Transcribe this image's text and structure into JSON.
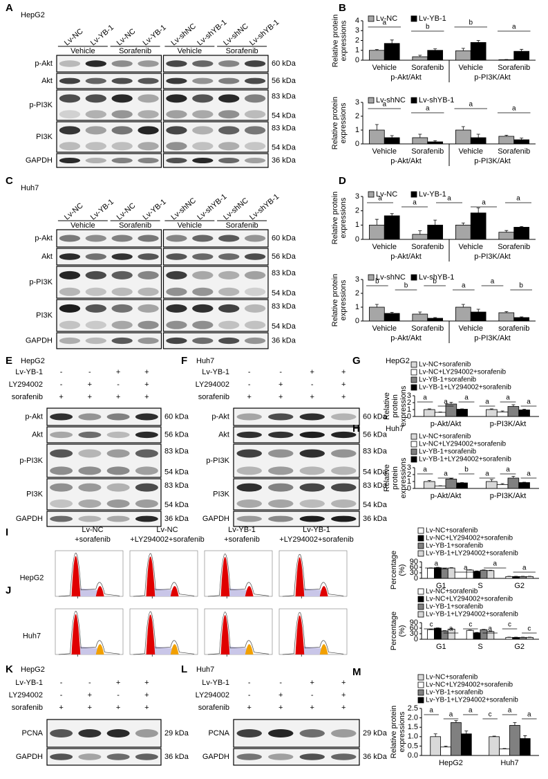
{
  "blots": [
    {
      "panel": "A",
      "cell": "HepG2",
      "lanes": [
        "Lv-NC",
        "Lv-YB-1",
        "Lv-NC",
        "Lv-YB-1",
        "Lv-shNC",
        "Lv-shYB-1",
        "Lv-shNC",
        "Lv-shYB-1"
      ],
      "groups": [
        "Vehicle",
        "Sorafenib",
        "Vehicle",
        "Sorafenib"
      ],
      "rows": [
        {
          "name": "p-Akt",
          "kda": [
            "60 kDa"
          ]
        },
        {
          "name": "Akt",
          "kda": [
            "56 kDa"
          ]
        },
        {
          "name": "p-PI3K",
          "kda": [
            "83 kDa",
            "54 kDa"
          ]
        },
        {
          "name": "PI3K",
          "kda": [
            "83 kDa",
            "54 kDa"
          ]
        },
        {
          "name": "GAPDH",
          "kda": [
            "36 kDa"
          ]
        }
      ]
    },
    {
      "panel": "C",
      "cell": "Huh7",
      "lanes": [
        "Lv-NC",
        "Lv-YB-1",
        "Lv-NC",
        "Lv-YB-1",
        "Lv-shNC",
        "Lv-shYB-1",
        "Lv-shNC",
        "Lv-shYB-1"
      ],
      "groups": [
        "Vehicle",
        "Sorafenib",
        "Vehicle",
        "Sorafenib"
      ],
      "rows": [
        {
          "name": "p-Akt",
          "kda": [
            "60 kDa"
          ]
        },
        {
          "name": "Akt",
          "kda": [
            "56 kDa"
          ]
        },
        {
          "name": "p-PI3K",
          "kda": [
            "83 kDa",
            "54 kDa"
          ]
        },
        {
          "name": "PI3K",
          "kda": [
            "83 kDa",
            "54 kDa"
          ]
        },
        {
          "name": "GAPDH",
          "kda": [
            "36 kDa"
          ]
        }
      ]
    },
    {
      "panel": "E",
      "cell": "HepG2",
      "conditions": [
        {
          "name": "Lv-YB-1",
          "marks": [
            "-",
            "-",
            "+",
            "+"
          ]
        },
        {
          "name": "LY294002",
          "marks": [
            "-",
            "+",
            "-",
            "+"
          ]
        },
        {
          "name": "sorafenib",
          "marks": [
            "+",
            "+",
            "+",
            "+"
          ]
        }
      ],
      "rows": [
        {
          "name": "p-Akt",
          "kda": [
            "60 kDa"
          ]
        },
        {
          "name": "Akt",
          "kda": [
            "56 kDa"
          ]
        },
        {
          "name": "p-PI3K",
          "kda": [
            "83 kDa",
            "54 kDa"
          ]
        },
        {
          "name": "PI3K",
          "kda": [
            "83 kDa",
            "54 kDa"
          ]
        },
        {
          "name": "GAPDH",
          "kda": [
            "36 kDa"
          ]
        }
      ]
    },
    {
      "panel": "F",
      "cell": "Huh7",
      "conditions": [
        {
          "name": "Lv-YB-1",
          "marks": [
            "-",
            "-",
            "+",
            "+"
          ]
        },
        {
          "name": "LY294002",
          "marks": [
            "-",
            "+",
            "-",
            "+"
          ]
        },
        {
          "name": "sorafenib",
          "marks": [
            "+",
            "+",
            "+",
            "+"
          ]
        }
      ],
      "rows": [
        {
          "name": "p-Akt",
          "kda": [
            "60 kDa"
          ]
        },
        {
          "name": "Akt",
          "kda": [
            "56 kDa"
          ]
        },
        {
          "name": "p-PI3K",
          "kda": [
            "83 kDa",
            "54 kDa"
          ]
        },
        {
          "name": "PI3K",
          "kda": [
            "83 kDa",
            "54 kDa"
          ]
        },
        {
          "name": "GAPDH",
          "kda": [
            "36 kDa"
          ]
        }
      ]
    },
    {
      "panel": "K",
      "cell": "HepG2",
      "conditions": [
        {
          "name": "Lv-YB-1",
          "marks": [
            "-",
            "-",
            "+",
            "+"
          ]
        },
        {
          "name": "LY294002",
          "marks": [
            "-",
            "+",
            "-",
            "+"
          ]
        },
        {
          "name": "sorafenib",
          "marks": [
            "+",
            "+",
            "+",
            "+"
          ]
        }
      ],
      "rows": [
        {
          "name": "PCNA",
          "kda": [
            "29 kDa"
          ]
        },
        {
          "name": "GAPDH",
          "kda": [
            "36 kDa"
          ]
        }
      ]
    },
    {
      "panel": "L",
      "cell": "Huh7",
      "conditions": [
        {
          "name": "Lv-YB-1",
          "marks": [
            "-",
            "-",
            "+",
            "+"
          ]
        },
        {
          "name": "LY294002",
          "marks": [
            "-",
            "+",
            "-",
            "+"
          ]
        },
        {
          "name": "sorafenib",
          "marks": [
            "+",
            "+",
            "+",
            "+"
          ]
        }
      ],
      "rows": [
        {
          "name": "PCNA",
          "kda": [
            "29 kDa"
          ]
        },
        {
          "name": "GAPDH",
          "kda": [
            "36 kDa"
          ]
        }
      ]
    }
  ],
  "flow": {
    "columns": [
      [
        "Lv-NC",
        "+sorafenib"
      ],
      [
        "Lv-NC",
        "+LY294002+sorafenib"
      ],
      [
        "Lv-YB-1",
        "+sorafenib"
      ],
      [
        "Lv-YB-1",
        "+LY294002+sorafenib"
      ]
    ],
    "rows": [
      {
        "panel": "I",
        "cell": "HepG2"
      },
      {
        "panel": "J",
        "cell": "Huh7"
      }
    ]
  },
  "chart_data": [
    {
      "type": "bar",
      "panel": "B",
      "ylabel": "Relative protein expressions",
      "categories": [
        "Vehicle",
        "Sorafenib",
        "Vehicle",
        "Sorafenib"
      ],
      "groups": [
        "p-Akt/Akt",
        "p-PI3K/Akt"
      ],
      "series": [
        {
          "name": "Lv-NC",
          "color": "#a6a6a6",
          "values": [
            1,
            0.35,
            0.95,
            0.05
          ],
          "errors": [
            0.08,
            0.15,
            0.25,
            0.02
          ]
        },
        {
          "name": "Lv-YB-1",
          "color": "#000000",
          "values": [
            1.7,
            1.0,
            1.8,
            0.9
          ],
          "errors": [
            0.35,
            0.15,
            0.2,
            0.2
          ]
        }
      ],
      "ylim": [
        0,
        4
      ],
      "yticks": [
        0,
        1,
        2,
        3,
        4
      ],
      "annotations": [
        "a",
        "b",
        "b",
        "a"
      ]
    },
    {
      "type": "bar",
      "ylabel": "Relative protein expressions",
      "categories": [
        "Vehicle",
        "Sorafenib",
        "Vehicle",
        "Sorafenib"
      ],
      "groups": [
        "p-Akt/Akt",
        "p-PI3K/Akt"
      ],
      "series": [
        {
          "name": "Lv-shNC",
          "color": "#a6a6a6",
          "values": [
            1,
            0.45,
            1,
            0.55
          ],
          "errors": [
            0.4,
            0.25,
            0.25,
            0.08
          ]
        },
        {
          "name": "Lv-shYB-1",
          "color": "#000000",
          "values": [
            0.45,
            0.15,
            0.45,
            0.3
          ],
          "errors": [
            0.15,
            0.08,
            0.25,
            0.12
          ]
        }
      ],
      "ylim": [
        0,
        3
      ],
      "yticks": [
        0,
        1,
        2,
        3
      ],
      "annotations": [
        "a",
        "a",
        "a",
        "a"
      ]
    },
    {
      "type": "bar",
      "panel": "D",
      "ylabel": "Relative protein expressions",
      "categories": [
        "Vehicle",
        "Sorafenib",
        "Vehicle",
        "Sorafenib"
      ],
      "groups": [
        "p-Akt/Akt",
        "p-PI3K/Akt"
      ],
      "series": [
        {
          "name": "Lv-NC",
          "color": "#a6a6a6",
          "values": [
            1,
            0.35,
            1,
            0.5
          ],
          "errors": [
            0.4,
            0.25,
            0.15,
            0.12
          ]
        },
        {
          "name": "Lv-YB-1",
          "color": "#000000",
          "values": [
            1.65,
            1.0,
            1.85,
            0.85
          ],
          "errors": [
            0.15,
            0.35,
            0.35,
            0.05
          ]
        }
      ],
      "ylim": [
        0,
        3
      ],
      "yticks": [
        0,
        1,
        2,
        3
      ],
      "annotations": [
        "a",
        "a",
        "a",
        "a",
        "a"
      ]
    },
    {
      "type": "bar",
      "ylabel": "Relative protein expressions",
      "categories": [
        "Vehicle",
        "Sorafenib",
        "Vehicle",
        "sorafenib"
      ],
      "groups": [
        "p-Akt/Akt",
        "p-PI3K/Akt"
      ],
      "series": [
        {
          "name": "Lv-shNC",
          "color": "#a6a6a6",
          "values": [
            1,
            0.5,
            1,
            0.6
          ],
          "errors": [
            0.2,
            0.15,
            0.2,
            0.08
          ]
        },
        {
          "name": "Lv-shYB-1",
          "color": "#000000",
          "values": [
            0.55,
            0.2,
            0.65,
            0.25
          ],
          "errors": [
            0.08,
            0.05,
            0.2,
            0.05
          ]
        }
      ],
      "ylim": [
        0,
        3
      ],
      "yticks": [
        0,
        1,
        2,
        3
      ],
      "annotations": [
        "b",
        "b",
        "b",
        "a",
        "a",
        "b"
      ]
    },
    {
      "type": "bar",
      "panel": "G",
      "subtitle": "HepG2",
      "ylabel": "Relative protein expressions",
      "categories": [
        "p-Akt/Akt",
        "p-PI3K/Akt"
      ],
      "series": [
        {
          "name": "Lv-NC+sorafenib",
          "color": "#d9d9d9",
          "values": [
            1,
            1
          ],
          "errors": [
            0.1,
            0.1
          ]
        },
        {
          "name": "Lv-NC+LY294002+sorafenib",
          "color": "#ffffff",
          "values": [
            0.6,
            0.65
          ],
          "errors": [
            0.05,
            0.15
          ]
        },
        {
          "name": "Lv-YB-1+sorafenib",
          "color": "#808080",
          "values": [
            1.8,
            1.45
          ],
          "errors": [
            0.25,
            0.25
          ]
        },
        {
          "name": "Lv-YB-1+LY294002+sorafenib",
          "color": "#000000",
          "values": [
            1.05,
            0.95
          ],
          "errors": [
            0.05,
            0.1
          ]
        }
      ],
      "ylim": [
        0,
        3
      ],
      "yticks": [
        0,
        1,
        2,
        3
      ],
      "annotations": [
        "a",
        "a",
        "a",
        "a",
        "a",
        "a"
      ]
    },
    {
      "type": "bar",
      "panel": "H",
      "subtitle": "Huh7",
      "ylabel": "Relative protein expressions",
      "categories": [
        "p-Akt/Akt",
        "p-PI3K/Akt"
      ],
      "series": [
        {
          "name": "Lv-NC+sorafenib",
          "color": "#d9d9d9",
          "values": [
            1,
            1
          ],
          "errors": [
            0.15,
            0.3
          ]
        },
        {
          "name": "Lv-NC+LY294002+sorafenib",
          "color": "#ffffff",
          "values": [
            0.35,
            0.55
          ],
          "errors": [
            0.03,
            0.15
          ]
        },
        {
          "name": "Lv-YB-1+sorafenib",
          "color": "#808080",
          "values": [
            1.35,
            1.5
          ],
          "errors": [
            0.1,
            0.25
          ]
        },
        {
          "name": "Lv-YB-1+LY294002+sorafenib",
          "color": "#000000",
          "values": [
            0.8,
            0.85
          ],
          "errors": [
            0.05,
            0.05
          ]
        }
      ],
      "ylim": [
        0,
        3
      ],
      "yticks": [
        0,
        1,
        2,
        3
      ],
      "annotations": [
        "a",
        "a",
        "b",
        "a",
        "a",
        "a"
      ]
    },
    {
      "type": "bar",
      "ylabel": "Percentage (%)",
      "categories": [
        "G1",
        "S",
        "G2"
      ],
      "series": [
        {
          "name": "Lv-NC+sorafenib",
          "color": "#ffffff",
          "values": [
            55,
            45,
            10
          ],
          "errors": [
            2,
            2,
            1
          ]
        },
        {
          "name": "Lv-NC+LY294002+sorafenib",
          "color": "#000000",
          "values": [
            58,
            38,
            10
          ],
          "errors": [
            2,
            2,
            1
          ]
        },
        {
          "name": "Lv-YB-1+sorafenib",
          "color": "#808080",
          "values": [
            52,
            44,
            10
          ],
          "errors": [
            2,
            2,
            1
          ]
        },
        {
          "name": "Lv-YB-1+LY294002+sorafenib",
          "color": "#d9d9d9",
          "values": [
            56,
            42,
            10
          ],
          "errors": [
            2,
            2,
            1
          ]
        }
      ],
      "ylim": [
        0,
        90
      ],
      "yticks": [
        0,
        30,
        60,
        90
      ],
      "annotations": [
        "a",
        "a",
        "a",
        "a"
      ]
    },
    {
      "type": "bar",
      "ylabel": "Percentage (%)",
      "categories": [
        "G1",
        "S",
        "G2"
      ],
      "series": [
        {
          "name": "Lv-NC+sorafenib",
          "color": "#ffffff",
          "values": [
            52,
            48,
            10
          ],
          "errors": [
            2,
            2,
            1
          ]
        },
        {
          "name": "Lv-NC+LY294002+sorafenib",
          "color": "#000000",
          "values": [
            60,
            35,
            10
          ],
          "errors": [
            2,
            2,
            1
          ]
        },
        {
          "name": "Lv-YB-1+sorafenib",
          "color": "#808080",
          "values": [
            45,
            52,
            10
          ],
          "errors": [
            2,
            2,
            1
          ]
        },
        {
          "name": "Lv-YB-1+LY294002+sorafenib",
          "color": "#d9d9d9",
          "values": [
            55,
            42,
            10
          ],
          "errors": [
            2,
            2,
            1
          ]
        }
      ],
      "ylim": [
        0,
        90
      ],
      "yticks": [
        0,
        30,
        60,
        90
      ],
      "annotations": [
        "c",
        "a",
        "c",
        "a",
        "c",
        "c"
      ]
    },
    {
      "type": "bar",
      "panel": "M",
      "ylabel": "Relative protein expressions",
      "categories": [
        "HepG2",
        "Huh7"
      ],
      "series": [
        {
          "name": "Lv-NC+sorafenib",
          "color": "#d9d9d9",
          "values": [
            1,
            1
          ],
          "errors": [
            0.15,
            0.03
          ]
        },
        {
          "name": "Lv-NC+LY294002+sorafenib",
          "color": "#ffffff",
          "values": [
            0.45,
            0.35
          ],
          "errors": [
            0.05,
            0.02
          ]
        },
        {
          "name": "Lv-YB-1+sorafenib",
          "color": "#808080",
          "values": [
            1.75,
            1.6
          ],
          "errors": [
            0.1,
            0.15
          ]
        },
        {
          "name": "Lv-YB-1+LY294002+sorafenib",
          "color": "#000000",
          "values": [
            1.15,
            0.9
          ],
          "errors": [
            0.15,
            0.15
          ]
        }
      ],
      "ylim": [
        0,
        2.5
      ],
      "yticks": [
        {
          "value": 0,
          "label": "0.0"
        },
        0.5,
        {
          "value": 1,
          "label": "1.0"
        },
        1.5,
        {
          "value": 2,
          "label": "2.0"
        },
        2.5
      ],
      "annotations": [
        "a",
        "a",
        "a",
        "c",
        "a",
        "a"
      ]
    }
  ]
}
